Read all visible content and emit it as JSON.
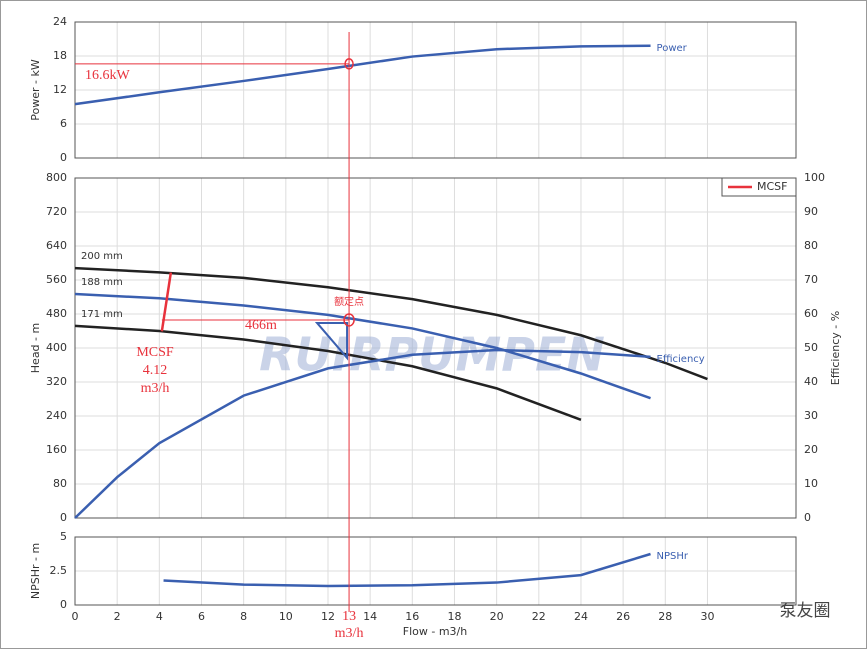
{
  "chart_data": [
    {
      "type": "line",
      "ylabel": "Power - kW",
      "ylim": [
        0,
        24
      ],
      "yticks": [
        0,
        6,
        12,
        18,
        24
      ],
      "xlim": [
        0,
        34.2
      ],
      "grid": true,
      "series": [
        {
          "name": "Power",
          "color": "#3a5fb0",
          "x": [
            0,
            4,
            8,
            12,
            16,
            20,
            24,
            27.3
          ],
          "values": [
            9.5,
            11.6,
            13.6,
            15.7,
            17.9,
            19.2,
            19.7,
            19.8
          ]
        }
      ],
      "duty_value": 16.6,
      "duty_label": "16.6kW"
    },
    {
      "type": "line",
      "ylabel": "Head - m",
      "y2label": "Efficiency - %",
      "ylim": [
        0,
        800
      ],
      "yticks": [
        0,
        80,
        160,
        240,
        320,
        400,
        480,
        560,
        640,
        720,
        800
      ],
      "y2lim": [
        0,
        100
      ],
      "y2ticks": [
        0,
        10,
        20,
        30,
        40,
        50,
        60,
        70,
        80,
        90,
        100
      ],
      "xlim": [
        0,
        34.2
      ],
      "grid": true,
      "legend": "top-right",
      "series": [
        {
          "name": "200 mm",
          "color": "#222222",
          "x": [
            0,
            4,
            8,
            12,
            16,
            20,
            24,
            28,
            30
          ],
          "values": [
            588,
            578,
            565,
            543,
            515,
            478,
            430,
            365,
            327
          ]
        },
        {
          "name": "188 mm",
          "color": "#3a5fb0",
          "x": [
            0,
            4,
            8,
            12,
            16,
            20,
            24,
            27.3
          ],
          "values": [
            527,
            517,
            500,
            478,
            446,
            400,
            340,
            282
          ]
        },
        {
          "name": "171 mm",
          "color": "#222222",
          "x": [
            0,
            4,
            8,
            12,
            16,
            20,
            24
          ],
          "values": [
            452,
            440,
            420,
            393,
            357,
            305,
            231
          ]
        },
        {
          "name": "Efficiency",
          "color": "#3a5fb0",
          "axis": "y2",
          "x": [
            0,
            2,
            4,
            8,
            12,
            16,
            20,
            24,
            27.3
          ],
          "values": [
            0,
            12,
            22,
            36,
            44,
            48,
            49.4,
            48.8,
            47.4
          ]
        }
      ],
      "duty_label": "额定点",
      "duty_head": 466,
      "duty_head_label": "466m",
      "mcsf": {
        "label": "MCSF",
        "flow": 4.12,
        "unit": "m3/h",
        "color": "#e8323c"
      },
      "watermark": "RUIRPUMPEN"
    },
    {
      "type": "line",
      "ylabel": "NPSHr - m",
      "ylim": [
        0,
        5
      ],
      "yticks": [
        0,
        2.5,
        5
      ],
      "xlim": [
        0,
        34.2
      ],
      "grid": true,
      "xlabel": "Flow - m3/h",
      "xticks": [
        0,
        2,
        4,
        6,
        8,
        10,
        12,
        14,
        16,
        18,
        20,
        22,
        24,
        26,
        28,
        30
      ],
      "series": [
        {
          "name": "NPSHr",
          "color": "#3a5fb0",
          "x": [
            4.2,
            8,
            12,
            16,
            20,
            24,
            27.3
          ],
          "values": [
            1.8,
            1.5,
            1.4,
            1.45,
            1.65,
            2.2,
            3.75
          ]
        }
      ],
      "duty_flow": 13,
      "duty_unit": "m3/h"
    }
  ],
  "brand": "泵友圈"
}
